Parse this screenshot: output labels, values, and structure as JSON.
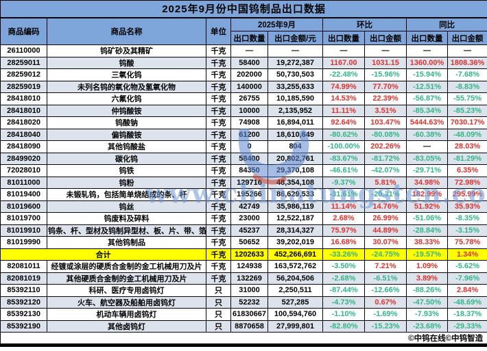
{
  "title": "2025年9月份中国钨制品出口数据",
  "header": {
    "code": "商品编码",
    "name": "商品名称",
    "unit": "单位",
    "month_group": "2025年9月",
    "mom_group": "环比",
    "yoy_group": "同比",
    "month_qty": "出口数量",
    "month_value": "出口金额/元",
    "mom_qty": "出口数量",
    "mom_value": "出口金额",
    "yoy_qty": "出口数量",
    "yoy_value": "出口金额"
  },
  "chart_data": {
    "type": "table",
    "columns": [
      "商品编码",
      "商品名称",
      "单位",
      "2025年9月 出口数量",
      "2025年9月 出口金额/元",
      "环比 出口数量",
      "环比 出口金额",
      "同比 出口数量",
      "同比 出口金额"
    ],
    "rows": [
      {
        "code": "26110000",
        "name": "钨矿砂及其精矿",
        "unit": "千克",
        "qty": "—",
        "value": "—",
        "mom_qty": "—",
        "mom_value": "—",
        "yoy_qty": "—",
        "yoy_value": "—"
      },
      {
        "code": "28259011",
        "name": "钨酸",
        "unit": "千克",
        "qty": "58400",
        "value": "19,272,387",
        "mom_qty": "1167.00",
        "mom_value": "1031.15",
        "yoy_qty": "1360.00%",
        "yoy_value": "1808.36%"
      },
      {
        "code": "28259012",
        "name": "三氧化钨",
        "unit": "千克",
        "qty": "202000",
        "value": "50,730,503",
        "mom_qty": "-22.48%",
        "mom_value": "-15.96%",
        "yoy_qty": "-15.94%",
        "yoy_value": "-7.68%"
      },
      {
        "code": "28259019",
        "name": "未列名钨的氧化物及氢氧化物",
        "unit": "千克",
        "qty": "140000",
        "value": "33,255,633",
        "mom_qty": "74.99%",
        "mom_value": "77.70%",
        "yoy_qty": "-12.51%",
        "yoy_value": "-8.83%"
      },
      {
        "code": "28418010",
        "name": "六氟化钨",
        "unit": "千克",
        "qty": "26755",
        "value": "10,185,590",
        "mom_qty": "14.53%",
        "mom_value": "22.39%",
        "yoy_qty": "-56.87%",
        "yoy_value": "-55.75%"
      },
      {
        "code": "28418010",
        "name": "仲钨酸铵",
        "unit": "千克",
        "qty": "10000",
        "value": "2,135,952",
        "mom_qty": "11.11%",
        "mom_value": "3.51%",
        "yoy_qty": "-85.34%",
        "yoy_value": "-85.23%"
      },
      {
        "code": "28418020",
        "name": "钨酸钠",
        "unit": "千克",
        "qty": "74908",
        "value": "16,894,011",
        "mom_qty": "92.64%",
        "mom_value": "103.47%",
        "yoy_qty": "5444.63%",
        "yoy_value": "7030.17%"
      },
      {
        "code": "28418040",
        "name": "偏钨酸铵",
        "unit": "千克",
        "qty": "61200",
        "value": "18,610,649",
        "mom_qty": "-80.62%",
        "mom_value": "-80.08%",
        "yoy_qty": "-60.38%",
        "yoy_value": "-48.09%"
      },
      {
        "code": "28418090",
        "name": "其他钨酸盐",
        "unit": "千克",
        "qty": "0",
        "value": "804",
        "mom_qty": "-100.00%",
        "mom_value": "202.26%",
        "yoy_qty": "—",
        "yoy_value": "28.03%"
      },
      {
        "code": "28499020",
        "name": "碳化钨",
        "unit": "千克",
        "qty": "58400",
        "value": "20,802,761",
        "mom_qty": "-83.67%",
        "mom_value": "-81.72%",
        "yoy_qty": "-83.05%",
        "yoy_value": "-81.29%"
      },
      {
        "code": "72028010",
        "name": "钨铁",
        "unit": "千克",
        "qty": "84350",
        "value": "29,370,108",
        "mom_qty": "-46.61%",
        "mom_value": "-42.07%",
        "yoy_qty": "-29.71%",
        "yoy_value": "6.35%"
      },
      {
        "code": "81011000",
        "name": "钨粉",
        "unit": "千克",
        "qty": "129716",
        "value": "48,354,108",
        "mom_qty": "-9.37%",
        "mom_value": "5.81%",
        "yoy_qty": "34.98%",
        "yoy_value": "72.98%"
      },
      {
        "code": "81019400",
        "name": "未锻轧钨，包括简单烧结成的条、杆",
        "unit": "千克",
        "qty": "195266",
        "value": "86,629,533",
        "mom_qty": "-31.61%",
        "mom_value": "-20.31%",
        "yoy_qty": "182.99%",
        "yoy_value": "295.99%"
      },
      {
        "code": "81019600",
        "name": "钨丝",
        "unit": "千克",
        "qty": "42749",
        "value": "35,986,119",
        "mom_qty": "11.14%",
        "mom_value": "14.76%",
        "yoy_qty": "51.92%",
        "yoy_value": "35.93%"
      },
      {
        "code": "81019700",
        "name": "钨废料及碎料",
        "unit": "千克",
        "qty": "23000",
        "value": "12,522,187",
        "mom_qty": "2.68%",
        "mom_value": "26.99%",
        "yoy_qty": "-51.06%",
        "yoy_value": "-8.35%"
      },
      {
        "code": "81019910",
        "name": "钨条、杆、型材及钨制异型材、板、片、带、箔",
        "unit": "千克",
        "qty": "45237",
        "value": "28,314,327",
        "mom_qty": "75.97%",
        "mom_value": "44.89%",
        "yoy_qty": "-28.84%",
        "yoy_value": "-3.15%"
      },
      {
        "code": "81019990",
        "name": "其他钨制品",
        "unit": "千克",
        "qty": "50652",
        "value": "39,202,019",
        "mom_qty": "16.68%",
        "mom_value": "30.07%",
        "yoy_qty": "38.33%",
        "yoy_value": "75.78%"
      },
      {
        "code": "",
        "name": "合计",
        "unit": "千克",
        "qty": "1202633",
        "value": "452,266,691",
        "mom_qty": "-33.26%",
        "mom_value": "-24.75%",
        "yoy_qty": "-19.57%",
        "yoy_value": "1.34%",
        "total": true
      },
      {
        "code": "82081011",
        "name": "经镀或涂层的硬质合金制的金工机械用刀及片",
        "unit": "千克",
        "qty": "124938",
        "value": "163,572,762",
        "mom_qty": "-3.50%",
        "mom_value": "7.21%",
        "yoy_qty": "1.09%",
        "yoy_value": "-5.62%"
      },
      {
        "code": "82081019",
        "name": "其他硬质合金制的金工机械用刀及片",
        "unit": "千克",
        "qty": "132269",
        "value": "56,204,506",
        "mom_qty": "-2.68%",
        "mom_value": "-6.51%",
        "yoy_qty": "3.89%",
        "yoy_value": "-7.96%"
      },
      {
        "code": "85392110",
        "name": "科研、医疗专用卤钨灯",
        "unit": "只",
        "qty": "31000",
        "value": "2,250,511",
        "mom_qty": "-87.44%",
        "mom_value": "-12.66%",
        "yoy_qty": "-88.26%",
        "yoy_value": "2.84%"
      },
      {
        "code": "85392120",
        "name": "火车、航空器及船舶用卤钨灯",
        "unit": "只",
        "qty": "52232",
        "value": "527,285",
        "mom_qty": "-4.73%",
        "mom_value": "0.67%",
        "yoy_qty": "-47.50%",
        "yoy_value": "-48.69%"
      },
      {
        "code": "85392130",
        "name": "机动车辆用卤钨灯",
        "unit": "只",
        "qty": "61830667",
        "value": "100,594,760",
        "mom_qty": "-1.10%",
        "mom_value": "-1.69%",
        "yoy_qty": "-7.93%",
        "yoy_value": "-18.37%"
      },
      {
        "code": "85392190",
        "name": "其他卤钨灯",
        "unit": "只",
        "qty": "8870658",
        "value": "27,999,801",
        "mom_qty": "-82.80%",
        "mom_value": "-15.23%",
        "yoy_qty": "-23.68%",
        "yoy_value": "-29.33%"
      }
    ]
  },
  "footer": {
    "copyright": "©中钨在线©中钨智造"
  },
  "watermark": {
    "text": "www.chinatungsten.com",
    "logo": "chinatungsten-logo"
  },
  "colors": {
    "header_blue": "#7EA5D9",
    "alt_row": "#DDE3ED",
    "total_yellow": "#FFFF00",
    "increase_red": "#E0322D",
    "decrease_green": "#33B586",
    "watermark_blue": "#6E96D7",
    "border_black": "#000000"
  }
}
